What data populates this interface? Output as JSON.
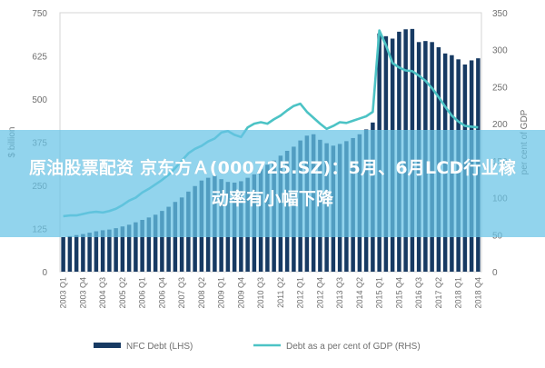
{
  "chart_data": {
    "type": "bar",
    "categories": [
      "2003 Q1",
      "2003 Q2",
      "2003 Q3",
      "2003 Q4",
      "2004 Q1",
      "2004 Q2",
      "2004 Q3",
      "2004 Q4",
      "2005 Q1",
      "2005 Q2",
      "2005 Q3",
      "2005 Q4",
      "2006 Q1",
      "2006 Q2",
      "2006 Q3",
      "2006 Q4",
      "2007 Q1",
      "2007 Q2",
      "2007 Q3",
      "2007 Q4",
      "2008 Q1",
      "2008 Q2",
      "2008 Q3",
      "2008 Q4",
      "2009 Q1",
      "2009 Q2",
      "2009 Q3",
      "2009 Q4",
      "2010 Q1",
      "2010 Q2",
      "2010 Q3",
      "2010 Q4",
      "2011 Q1",
      "2011 Q2",
      "2011 Q3",
      "2011 Q4",
      "2012 Q1",
      "2012 Q2",
      "2012 Q3",
      "2012 Q4",
      "2013 Q1",
      "2013 Q2",
      "2013 Q3",
      "2013 Q4",
      "2014 Q1",
      "2014 Q2",
      "2014 Q3",
      "2014 Q4",
      "2015 Q1",
      "2015 Q2",
      "2015 Q3",
      "2015 Q4",
      "2016 Q1",
      "2016 Q2",
      "2016 Q3",
      "2016 Q4",
      "2017 Q1",
      "2017 Q2",
      "2017 Q3",
      "2017 Q4",
      "2018 Q1",
      "2018 Q2",
      "2018 Q3",
      "2018 Q4"
    ],
    "x_tick_labels": [
      "2003 Q1",
      "2003 Q4",
      "2004 Q3",
      "2005 Q2",
      "2006 Q1",
      "2006 Q4",
      "2007 Q3",
      "2008 Q2",
      "2009 Q1",
      "2009 Q4",
      "2010 Q3",
      "2011 Q2",
      "2012 Q1",
      "2012 Q4",
      "2013 Q3",
      "2014 Q2",
      "2015 Q1",
      "2015 Q4",
      "2016 Q3",
      "2017 Q2",
      "2018 Q1",
      "2018 Q4"
    ],
    "y_left_ticks": [
      "0",
      "125",
      "250",
      "375",
      "500",
      "625",
      "750"
    ],
    "y_left_label": "$ billion",
    "y_right_ticks": [
      "0",
      "50",
      "100",
      "150",
      "200",
      "250",
      "300",
      "350"
    ],
    "y_right_label": "per cent of GDP",
    "ylim_left": [
      0,
      750
    ],
    "ylim_right": [
      0,
      350
    ],
    "series": [
      {
        "name": "NFC Debt (LHS)",
        "type": "bar",
        "axis": "left",
        "values": [
          100,
          103,
          106,
          109,
          113,
          117,
          120,
          122,
          126,
          131,
          136,
          143,
          150,
          157,
          165,
          176,
          188,
          202,
          215,
          232,
          248,
          264,
          272,
          278,
          268,
          260,
          258,
          262,
          272,
          282,
          298,
          310,
          322,
          336,
          350,
          362,
          380,
          394,
          398,
          382,
          372,
          365,
          370,
          378,
          387,
          398,
          412,
          432,
          690,
          682,
          675,
          695,
          702,
          703,
          665,
          668,
          665,
          650,
          632,
          627,
          615,
          600,
          612,
          618
        ]
      },
      {
        "name": "Debt as a per cent of GDP (RHS)",
        "type": "line",
        "axis": "right",
        "values": [
          75,
          76,
          76,
          78,
          80,
          81,
          80,
          82,
          85,
          90,
          96,
          100,
          107,
          112,
          118,
          124,
          131,
          140,
          150,
          160,
          166,
          170,
          176,
          180,
          188,
          190,
          185,
          182,
          195,
          200,
          202,
          200,
          206,
          211,
          218,
          224,
          227,
          216,
          208,
          200,
          193,
          197,
          202,
          201,
          204,
          207,
          210,
          216,
          326,
          306,
          282,
          276,
          272,
          271,
          265,
          258,
          248,
          236,
          223,
          211,
          203,
          197,
          196,
          195
        ]
      }
    ],
    "colors": {
      "bar": "#173a63",
      "line": "#4cc3c5",
      "axis_text": "#6e6e6e",
      "gridline": "#dadada"
    },
    "legend_position": "bottom",
    "grid": false
  },
  "overlay": {
    "banner_text": "原油股票配资 京东方Ａ(000725.SZ)：5月、6月LCD行业稼动率有小幅下降",
    "banner_color": "#68c4e6"
  }
}
